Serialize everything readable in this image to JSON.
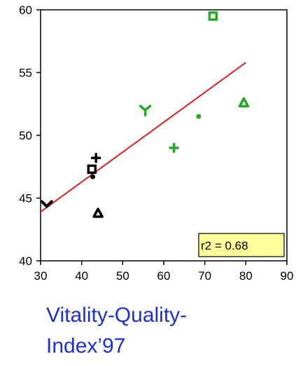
{
  "chart_data": {
    "type": "scatter",
    "title": "",
    "xlabel": "",
    "ylabel": "",
    "xlim": [
      30,
      90
    ],
    "ylim": [
      40,
      60
    ],
    "xticks": [
      30,
      40,
      50,
      60,
      70,
      80,
      90
    ],
    "yticks": [
      40,
      45,
      50,
      55,
      60
    ],
    "grid": false,
    "series": [
      {
        "color": "#000000",
        "points": [
          {
            "x": 31.5,
            "y": 44.5,
            "marker": "chevron"
          },
          {
            "x": 42.5,
            "y": 47.3,
            "marker": "square"
          },
          {
            "x": 42.7,
            "y": 46.7,
            "marker": "dot"
          },
          {
            "x": 43.5,
            "y": 48.2,
            "marker": "plus"
          },
          {
            "x": 44.0,
            "y": 43.8,
            "marker": "triangle"
          }
        ]
      },
      {
        "color": "#22aa22",
        "points": [
          {
            "x": 55.5,
            "y": 52.0,
            "marker": "y"
          },
          {
            "x": 62.5,
            "y": 49.0,
            "marker": "plus"
          },
          {
            "x": 68.5,
            "y": 51.5,
            "marker": "dot"
          },
          {
            "x": 72.0,
            "y": 59.5,
            "marker": "square"
          },
          {
            "x": 79.5,
            "y": 52.6,
            "marker": "triangle"
          }
        ]
      }
    ],
    "trendline": {
      "color": "#e02020",
      "x": [
        30,
        80
      ],
      "y": [
        43.9,
        55.8
      ]
    },
    "annotation": {
      "text": "r2 = 0.68",
      "x": 79.5,
      "y": 41.2,
      "background": "#ffff99"
    }
  },
  "caption": {
    "line1": "Vitality-Quality-",
    "line2": "Index’97",
    "color": "#1f2fd6"
  }
}
